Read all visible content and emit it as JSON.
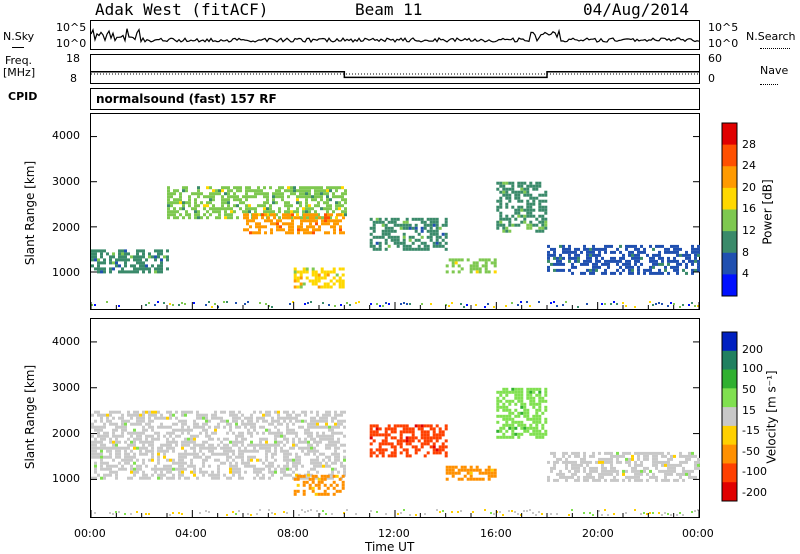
{
  "header": {
    "station": "Adak West (fitACF)",
    "beam": "Beam 11",
    "date": "04/Aug/2014"
  },
  "top_panels": {
    "nsky_label": "N.Sky",
    "nsearch_label": "N.Search",
    "freq_label": "Freq.",
    "freq_unit": "[MHz]",
    "nave_label": "Nave",
    "cpid_label": "CPID",
    "cpid_text": "normalsound (fast) 157 RF",
    "nsky_ticks": [
      "10^5",
      "10^0"
    ],
    "nsearch_ticks": [
      "10^5",
      "10^0"
    ],
    "freq_ticks": [
      "18",
      "8"
    ],
    "nave_ticks": [
      "60",
      "0"
    ]
  },
  "x_axis": {
    "label": "Time UT",
    "ticks": [
      "00:00",
      "04:00",
      "08:00",
      "12:00",
      "16:00",
      "20:00",
      "00:00"
    ]
  },
  "power_panel": {
    "ylabel": "Slant Range [km]",
    "yticks": [
      "4000",
      "3000",
      "2000",
      "1000"
    ],
    "colorbar_label": "Power [dB]",
    "colorbar_ticks": [
      "28",
      "24",
      "20",
      "16",
      "12",
      "8",
      "4"
    ],
    "colorbar_colors": [
      "#e00000",
      "#ff5000",
      "#ff9a00",
      "#ffd800",
      "#7ec850",
      "#3a8a6a",
      "#2050b0",
      "#0010ff"
    ]
  },
  "velocity_panel": {
    "ylabel": "Slant Range [km]",
    "yticks": [
      "4000",
      "3000",
      "2000",
      "1000"
    ],
    "colorbar_label": "Velocity [m s⁻¹]",
    "colorbar_ticks": [
      "200",
      "100",
      "50",
      "15",
      "-15",
      "-50",
      "-100",
      "-200"
    ],
    "colorbar_colors": [
      "#0020c0",
      "#208060",
      "#30b030",
      "#80e050",
      "#c8c8c8",
      "#ffd000",
      "#ff9000",
      "#ff4000",
      "#e00000"
    ]
  },
  "chart_data": {
    "type": "heatmap",
    "title": "Adak West (fitACF)  Beam 11  04/Aug/2014",
    "xlabel": "Time UT",
    "ylabel": "Slant Range [km]",
    "xlim": [
      "00:00",
      "24:00"
    ],
    "ylim": [
      180,
      4500
    ],
    "frequency_mhz": [
      {
        "t": 0,
        "f": 12
      },
      {
        "t": 10,
        "f": 10
      },
      {
        "t": 18,
        "f": 12
      }
    ],
    "power_regions_db": [
      {
        "t": [
          0,
          3
        ],
        "range_km": [
          1000,
          1500
        ],
        "db": 10
      },
      {
        "t": [
          3,
          10
        ],
        "range_km": [
          2200,
          2900
        ],
        "db": 14
      },
      {
        "t": [
          6,
          10
        ],
        "range_km": [
          1900,
          2300
        ],
        "db": 24
      },
      {
        "t": [
          8,
          10
        ],
        "range_km": [
          700,
          1100
        ],
        "db": 18
      },
      {
        "t": [
          11,
          14
        ],
        "range_km": [
          1500,
          2200
        ],
        "db": 10
      },
      {
        "t": [
          14,
          16
        ],
        "range_km": [
          1000,
          1300
        ],
        "db": 16
      },
      {
        "t": [
          16,
          18
        ],
        "range_km": [
          1900,
          3000
        ],
        "db": 12
      },
      {
        "t": [
          18,
          24
        ],
        "range_km": [
          1000,
          1600
        ],
        "db": 8
      }
    ],
    "velocity_regions_ms": [
      {
        "t": [
          0,
          10
        ],
        "range_km": [
          1000,
          2500
        ],
        "v": 0
      },
      {
        "t": [
          8,
          10
        ],
        "range_km": [
          700,
          1100
        ],
        "v": -60
      },
      {
        "t": [
          11,
          14
        ],
        "range_km": [
          1500,
          2200
        ],
        "v": -200
      },
      {
        "t": [
          14,
          16
        ],
        "range_km": [
          1000,
          1300
        ],
        "v": -60
      },
      {
        "t": [
          16,
          18
        ],
        "range_km": [
          1900,
          3000
        ],
        "v": 40
      },
      {
        "t": [
          18,
          24
        ],
        "range_km": [
          1000,
          1600
        ],
        "v": 0
      }
    ]
  }
}
